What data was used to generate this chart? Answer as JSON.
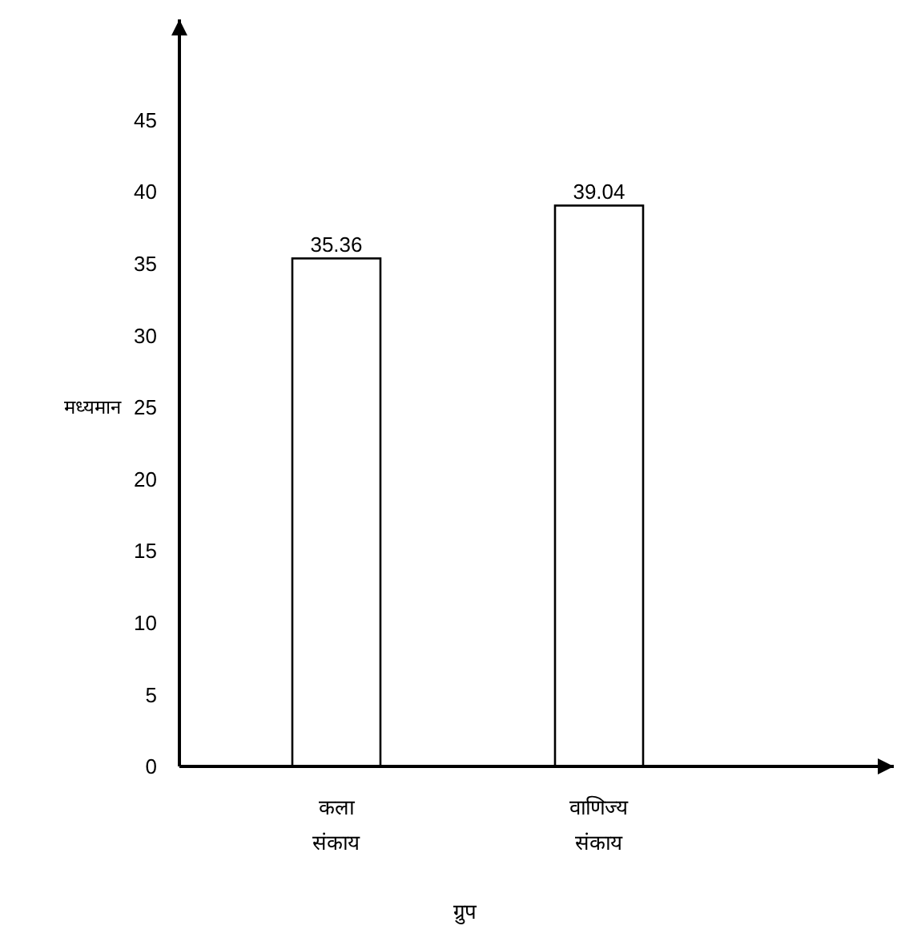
{
  "chart_data": {
    "type": "bar",
    "ylabel": "मध्यमान",
    "xlabel": "ग्रुप",
    "categories": [
      "कला संकाय",
      "वाणिज्य संकाय"
    ],
    "values": [
      35.36,
      39.04
    ],
    "color": "#ffffff",
    "data_labels": true,
    "ylim": [
      0,
      52
    ],
    "yticks": [
      0,
      5,
      10,
      15,
      20,
      25,
      30,
      35,
      40,
      45
    ],
    "grid": false
  }
}
